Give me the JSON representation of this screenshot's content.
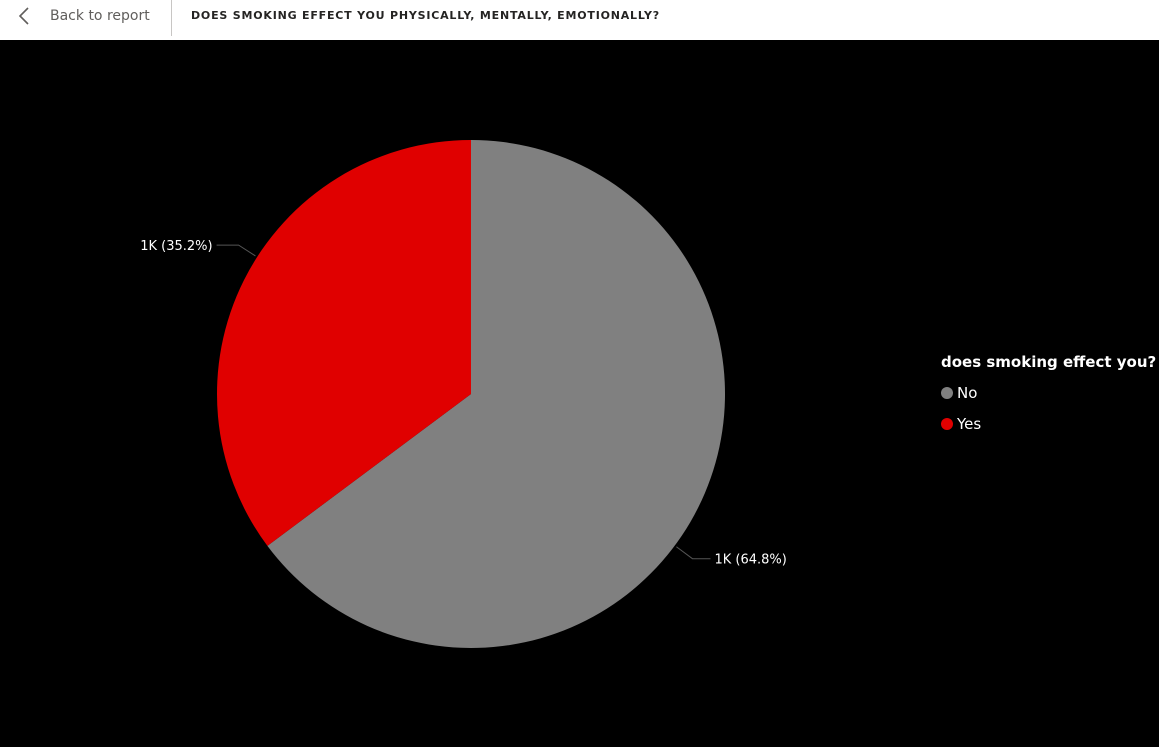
{
  "header": {
    "back_label": "Back to report",
    "title": "DOES SMOKING EFFECT YOU PHYSICALLY, MENTALLY, EMOTIONALLY?"
  },
  "icons": {
    "back": "chevron-left-icon"
  },
  "colors": {
    "background": "#000000",
    "no": "#808080",
    "yes": "#e00000",
    "label_text": "#ffffff",
    "leader_line": "#555555"
  },
  "chart_data": {
    "type": "pie",
    "title": "",
    "legend_title": "does smoking effect you?",
    "legend_position": "right",
    "series": [
      {
        "name": "No",
        "percent": 64.8,
        "label": "1K (64.8%)",
        "color": "#808080"
      },
      {
        "name": "Yes",
        "percent": 35.2,
        "label": "1K (35.2%)",
        "color": "#e00000"
      }
    ]
  }
}
